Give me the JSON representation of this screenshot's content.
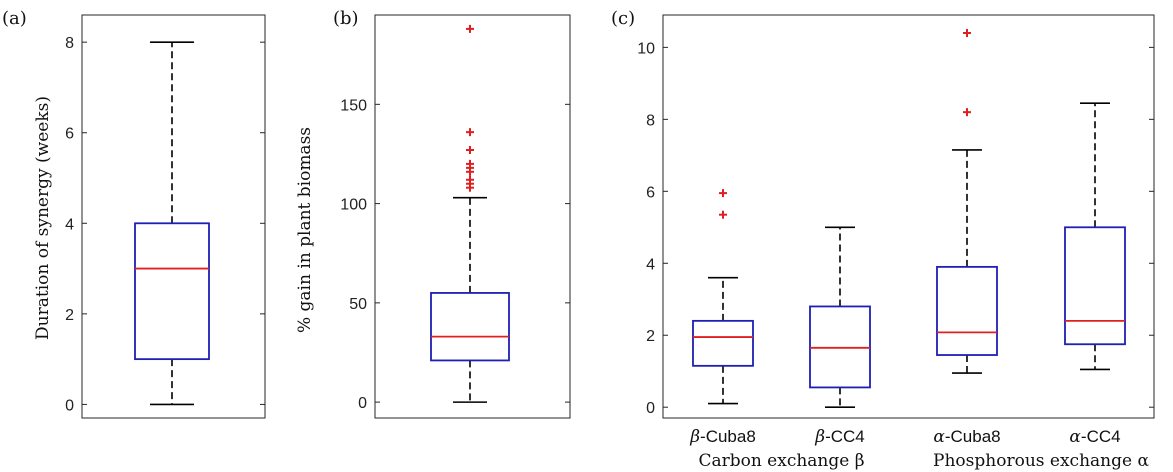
{
  "colors": {
    "box": "#1f1fb4",
    "median": "#e02020",
    "whisker": "#000000",
    "outlier": "#e02020"
  },
  "chart_data": [
    {
      "type": "box",
      "panel_label": "(a)",
      "ylabel": "Duration of synergy (weeks)",
      "ylim": [
        -0.3,
        8.6
      ],
      "yticks": [
        0,
        2,
        4,
        6,
        8
      ],
      "categories": [
        ""
      ],
      "boxes": [
        {
          "whisker_low": 0,
          "q1": 1,
          "median": 3,
          "q3": 4,
          "whisker_high": 8,
          "outliers": []
        }
      ]
    },
    {
      "type": "box",
      "panel_label": "(b)",
      "ylabel": "% gain in plant biomass",
      "ylim": [
        -8,
        195
      ],
      "yticks": [
        0,
        50,
        100,
        150
      ],
      "categories": [
        ""
      ],
      "boxes": [
        {
          "whisker_low": 0,
          "q1": 21,
          "median": 33,
          "q3": 55,
          "whisker_high": 103,
          "outliers": [
            188,
            136,
            127,
            120,
            118,
            116,
            112,
            110,
            108
          ]
        }
      ]
    },
    {
      "type": "box",
      "panel_label": "(c)",
      "ylabel": "",
      "ylim": [
        -0.3,
        10.9
      ],
      "yticks": [
        0,
        2,
        4,
        6,
        8,
        10
      ],
      "categories": [
        "β-Cuba8",
        "β-CC4",
        "α-Cuba8",
        "α-CC4"
      ],
      "category_parts": [
        {
          "symbol": "β",
          "rest": "-Cuba8"
        },
        {
          "symbol": "β",
          "rest": "-CC4"
        },
        {
          "symbol": "α",
          "rest": "-Cuba8"
        },
        {
          "symbol": "α",
          "rest": "-CC4"
        }
      ],
      "group_labels": [
        "Carbon exchange β",
        "Phosphorous exchange α"
      ],
      "boxes": [
        {
          "whisker_low": 0.1,
          "q1": 1.15,
          "median": 1.95,
          "q3": 2.4,
          "whisker_high": 3.6,
          "outliers": [
            5.95,
            5.35
          ]
        },
        {
          "whisker_low": 0.0,
          "q1": 0.55,
          "median": 1.65,
          "q3": 2.8,
          "whisker_high": 5.0,
          "outliers": []
        },
        {
          "whisker_low": 0.95,
          "q1": 1.45,
          "median": 2.08,
          "q3": 3.9,
          "whisker_high": 7.15,
          "outliers": [
            10.4,
            8.2
          ]
        },
        {
          "whisker_low": 1.05,
          "q1": 1.75,
          "median": 2.4,
          "q3": 5.0,
          "whisker_high": 8.45,
          "outliers": []
        }
      ]
    }
  ]
}
